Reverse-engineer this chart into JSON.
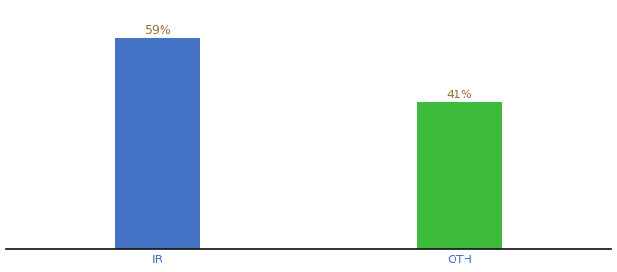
{
  "categories": [
    "IR",
    "OTH"
  ],
  "values": [
    59,
    41
  ],
  "bar_colors": [
    "#4472c4",
    "#3dbb3d"
  ],
  "label_color": "#a07040",
  "background_color": "#ffffff",
  "ylim": [
    0,
    68
  ],
  "bar_width": 0.28,
  "label_fontsize": 9,
  "tick_fontsize": 9,
  "spine_color": "#111111"
}
